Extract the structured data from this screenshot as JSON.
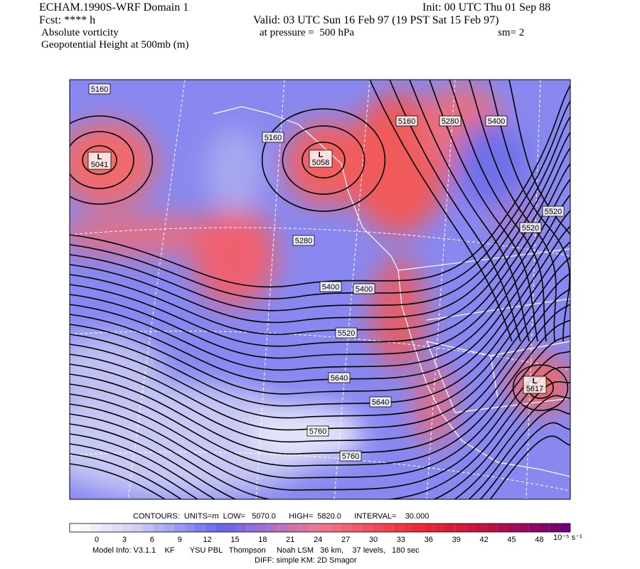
{
  "header": {
    "model": "ECHAM.1990S-WRF Domain 1",
    "init": "Init: 00 UTC Thu 01 Sep 88",
    "fcst": "Fcst: **** h",
    "valid": "Valid: 03 UTC Sun 16 Feb 97 (19 PST Sat 15 Feb 97)",
    "field1": "Absolute vorticity",
    "pressure": "at pressure =  500 hPa",
    "smooth": "sm= 2",
    "field2": "Geopotential Height at 500mb (m)"
  },
  "map": {
    "contour_labels": [
      "5160",
      "5160",
      "5160",
      "5280",
      "5400",
      "5520",
      "5520",
      "5280",
      "5400",
      "5400",
      "5520",
      "5640",
      "5640",
      "5760",
      "5760"
    ],
    "lows": [
      {
        "mark": "L",
        "value": "5041"
      },
      {
        "mark": "L",
        "value": "5058"
      },
      {
        "mark": "L",
        "value": "5617"
      }
    ]
  },
  "footer": {
    "contours": "CONTOURS:  UNITS=m  LOW=   5070.0      HIGH=  5820.0      INTERVAL=    30.000",
    "colorbar_ticks": [
      "0",
      "3",
      "6",
      "9",
      "12",
      "15",
      "18",
      "21",
      "24",
      "27",
      "30",
      "33",
      "36",
      "39",
      "42",
      "45",
      "48"
    ],
    "units": "10⁻⁵ s⁻¹",
    "model_info": "Model Info: V3.1.1    KF       YSU PBL   Thompson     Noah LSM   36 km,    37 levels,   180 sec",
    "diff": "DIFF: simple KM: 2D Smagor"
  }
}
